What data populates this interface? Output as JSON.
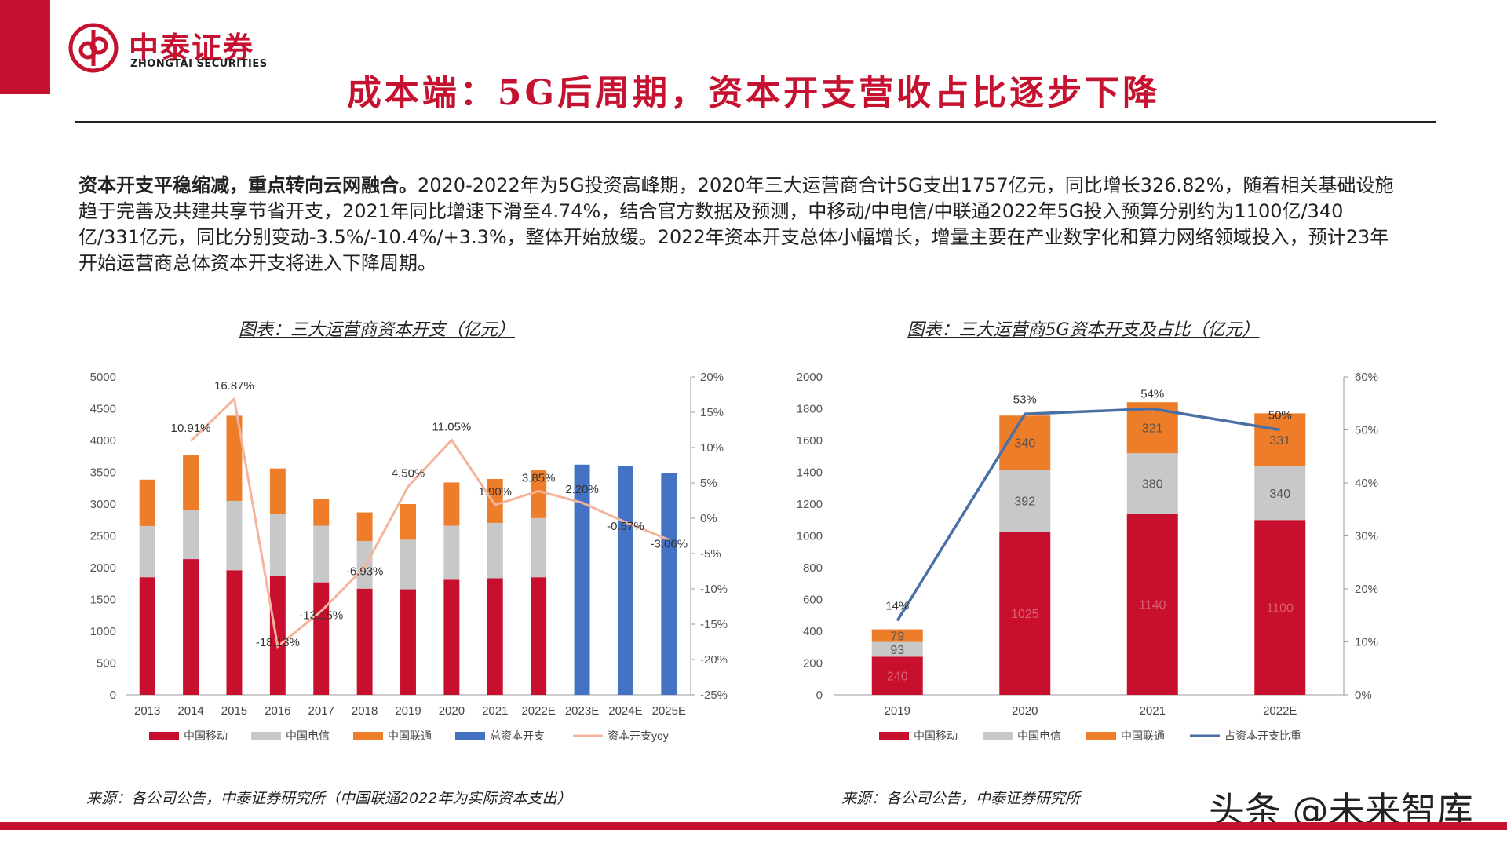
{
  "header": {
    "brand_cn": "中泰证券",
    "brand_en": "ZHONGTAI SECURITIES",
    "title": "成本端：5G后周期，资本开支营收占比逐步下降"
  },
  "intro": {
    "lead": "资本开支平稳缩减，重点转向云网融合。",
    "body": "2020-2022年为5G投资高峰期，2020年三大运营商合计5G支出1757亿元，同比增长326.82%，随着相关基础设施趋于完善及共建共享节省开支，2021年同比增速下滑至4.74%，结合官方数据及预测，中移动/中电信/中联通2022年5G投入预算分别约为1100亿/340亿/331亿元，同比分别变动-3.5%/-10.4%/+3.3%，整体开始放缓。2022年资本开支总体小幅增长，增量主要在产业数字化和算力网络领域投入，预计23年开始运营商总体资本开支将进入下降周期。"
  },
  "colors": {
    "mobile": "#c8102e",
    "telecom": "#c8c8c8",
    "unicom": "#ee7d2a",
    "total": "#4472c4",
    "yoy": "#f4b49c",
    "share": "#4a6fa5"
  },
  "chart_data": [
    {
      "type": "bar",
      "title": "图表：三大运营商资本开支（亿元）",
      "categories": [
        "2013",
        "2014",
        "2015",
        "2016",
        "2017",
        "2018",
        "2019",
        "2020",
        "2021",
        "2022E",
        "2023E",
        "2024E",
        "2025E"
      ],
      "stacked": true,
      "ylim": [
        0,
        5000
      ],
      "yticks": [
        "0",
        "500",
        "1000",
        "1500",
        "2000",
        "2500",
        "3000",
        "3500",
        "4000",
        "4500",
        "5000"
      ],
      "y2lim": [
        -25,
        20
      ],
      "y2ticks": [
        "-25%",
        "-20%",
        "-15%",
        "-10%",
        "-5%",
        "0%",
        "5%",
        "10%",
        "15%",
        "20%"
      ],
      "series": [
        {
          "name": "中国移动",
          "values": [
            1850,
            2135,
            1960,
            1870,
            1770,
            1670,
            1660,
            1810,
            1835,
            1850,
            null,
            null,
            null
          ]
        },
        {
          "name": "中国电信",
          "values": [
            805,
            770,
            1090,
            970,
            890,
            750,
            780,
            850,
            870,
            930,
            null,
            null,
            null
          ]
        },
        {
          "name": "中国联通",
          "values": [
            730,
            860,
            1340,
            720,
            420,
            450,
            560,
            680,
            690,
            750,
            null,
            null,
            null
          ]
        },
        {
          "name": "总资本开支",
          "values": [
            null,
            null,
            null,
            null,
            null,
            null,
            null,
            null,
            null,
            null,
            3620,
            3600,
            3490
          ]
        },
        {
          "name": "资本开支yoy",
          "axis": "right",
          "values": [
            null,
            10.91,
            16.87,
            -18.13,
            -13.15,
            -6.93,
            4.5,
            11.05,
            1.9,
            3.85,
            2.2,
            -0.57,
            -3.06
          ]
        }
      ],
      "point_labels": [
        "",
        "10.91%",
        "16.87%",
        "-18.13%",
        "-13.15%",
        "-6.93%",
        "4.50%",
        "11.05%",
        "1.90%",
        "3.85%",
        "2.20%",
        "-0.57%",
        "-3.06%"
      ],
      "source": "来源：各公司公告，中泰证券研究所（中国联通2022年为实际资本支出）"
    },
    {
      "type": "bar",
      "title": "图表：三大运营商5G资本开支及占比（亿元）",
      "categories": [
        "2019",
        "2020",
        "2021",
        "2022E"
      ],
      "stacked": true,
      "ylim": [
        0,
        2000
      ],
      "yticks": [
        "0",
        "200",
        "400",
        "600",
        "800",
        "1000",
        "1200",
        "1400",
        "1600",
        "1800",
        "2000"
      ],
      "y2lim": [
        0,
        60
      ],
      "y2ticks": [
        "0%",
        "10%",
        "20%",
        "30%",
        "40%",
        "50%",
        "60%"
      ],
      "series": [
        {
          "name": "中国移动",
          "values": [
            240,
            1025,
            1140,
            1100
          ],
          "labels": [
            "240",
            "1025",
            "1140",
            "1100"
          ]
        },
        {
          "name": "中国电信",
          "values": [
            93,
            392,
            380,
            340
          ],
          "labels": [
            "93",
            "392",
            "380",
            "340"
          ]
        },
        {
          "name": "中国联通",
          "values": [
            79,
            340,
            321,
            331
          ],
          "labels": [
            "79",
            "340",
            "321",
            "331"
          ]
        },
        {
          "name": "占资本开支比重",
          "axis": "right",
          "values": [
            14,
            53,
            54,
            50
          ],
          "labels": [
            "14%",
            "53%",
            "54%",
            "50%"
          ]
        }
      ],
      "source": "来源：各公司公告，中泰证券研究所"
    }
  ],
  "watermark": "头条 @未来智库"
}
